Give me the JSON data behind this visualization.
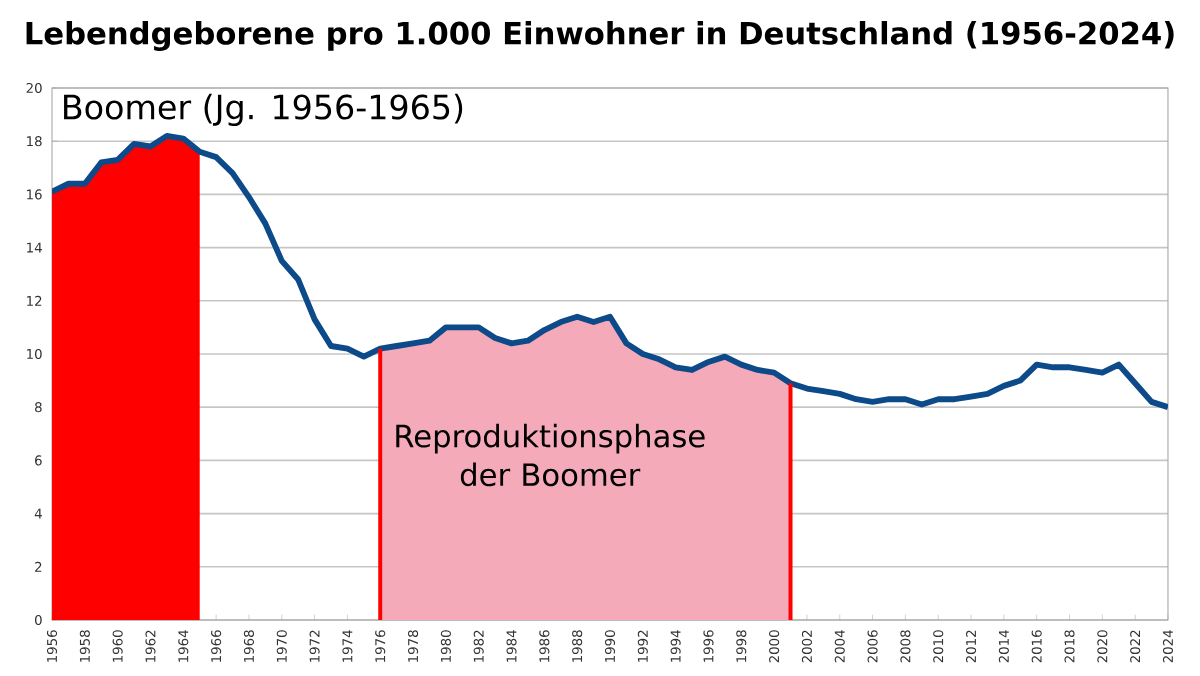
{
  "chart_data": {
    "type": "line",
    "title": "Lebendgeborene pro 1.000 Einwohner in Deutschland (1956-2024)",
    "annotations": [
      "Boomer (Jg. 1956-1965)",
      "Reproduktionsphase der Boomer"
    ],
    "series": [
      {
        "type": "area",
        "color": "#ff0000",
        "x": [
          1956,
          1957,
          1958,
          1959,
          1960,
          1961,
          1962,
          1963,
          1964,
          1965
        ],
        "values": [
          16.1,
          16.4,
          16.4,
          17.2,
          17.3,
          17.9,
          17.8,
          18.2,
          18.1,
          17.6
        ]
      },
      {
        "type": "area",
        "color": "#f4aab9",
        "x": [
          1976,
          1977,
          1978,
          1979,
          1980,
          1981,
          1982,
          1983,
          1984,
          1985,
          1986,
          1987,
          1988,
          1989,
          1990,
          1991,
          1992,
          1993,
          1994,
          1995,
          1996,
          1997,
          1998,
          1999,
          2000,
          2001
        ],
        "values": [
          10.2,
          10.3,
          10.4,
          10.5,
          11.0,
          11.0,
          11.0,
          10.6,
          10.4,
          10.5,
          10.9,
          11.2,
          11.4,
          11.2,
          11.4,
          10.4,
          10.0,
          9.8,
          9.5,
          9.4,
          9.7,
          9.9,
          9.6,
          9.4,
          9.3,
          8.9
        ]
      },
      {
        "color": "#0d4a8a",
        "x": [
          1956,
          1957,
          1958,
          1959,
          1960,
          1961,
          1962,
          1963,
          1964,
          1965,
          1966,
          1967,
          1968,
          1969,
          1970,
          1971,
          1972,
          1973,
          1974,
          1975,
          1976,
          1977,
          1978,
          1979,
          1980,
          1981,
          1982,
          1983,
          1984,
          1985,
          1986,
          1987,
          1988,
          1989,
          1990,
          1991,
          1992,
          1993,
          1994,
          1995,
          1996,
          1997,
          1998,
          1999,
          2000,
          2001,
          2002,
          2003,
          2004,
          2005,
          2006,
          2007,
          2008,
          2009,
          2010,
          2011,
          2012,
          2013,
          2014,
          2015,
          2016,
          2017,
          2018,
          2019,
          2020,
          2021,
          2022,
          2023,
          2024
        ],
        "values": [
          16.1,
          16.4,
          16.4,
          17.2,
          17.3,
          17.9,
          17.8,
          18.2,
          18.1,
          17.6,
          17.4,
          16.8,
          15.9,
          14.9,
          13.5,
          12.8,
          11.3,
          10.3,
          10.2,
          9.9,
          10.2,
          10.3,
          10.4,
          10.5,
          11.0,
          11.0,
          11.0,
          10.6,
          10.4,
          10.5,
          10.9,
          11.2,
          11.4,
          11.2,
          11.4,
          10.4,
          10.0,
          9.8,
          9.5,
          9.4,
          9.7,
          9.9,
          9.6,
          9.4,
          9.3,
          8.9,
          8.7,
          8.6,
          8.5,
          8.3,
          8.2,
          8.3,
          8.3,
          8.1,
          8.3,
          8.3,
          8.4,
          8.5,
          8.8,
          9.0,
          9.6,
          9.5,
          9.5,
          9.4,
          9.3,
          9.6,
          8.9,
          8.2,
          8.0
        ]
      }
    ],
    "ref_lines": [
      {
        "axis": "x",
        "value": 1976,
        "color": "#ff0000"
      },
      {
        "axis": "x",
        "value": 2001,
        "color": "#ff0000"
      }
    ],
    "xlim": [
      1956,
      2024
    ],
    "xticks": [
      1956,
      1958,
      1960,
      1962,
      1964,
      1966,
      1968,
      1970,
      1972,
      1974,
      1976,
      1978,
      1980,
      1982,
      1984,
      1986,
      1988,
      1990,
      1992,
      1994,
      1996,
      1998,
      2000,
      2002,
      2004,
      2006,
      2008,
      2010,
      2012,
      2014,
      2016,
      2018,
      2020,
      2022,
      2024
    ],
    "ylim": [
      0,
      20
    ],
    "yticks": [
      0,
      2,
      4,
      6,
      8,
      10,
      12,
      14,
      16,
      18,
      20
    ],
    "grid": "y"
  }
}
